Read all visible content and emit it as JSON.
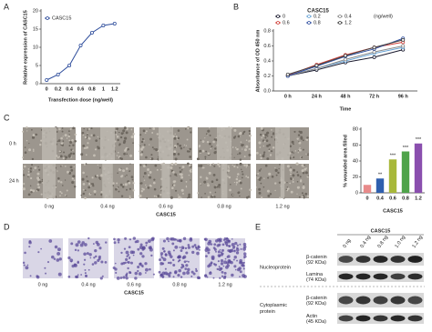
{
  "chart_data": [
    {
      "type": "line",
      "x_label": "Transfection dose (ng/well)",
      "y_label": "Relative expression of CASC15",
      "categories": [
        "0",
        "0.2",
        "0.4",
        "0.6",
        "0.8",
        "1",
        "1.2"
      ],
      "series": [
        {
          "name": "CASC15",
          "color": "#2e4d9c",
          "values": [
            1,
            2.5,
            5,
            10.5,
            14,
            16,
            16.5
          ]
        }
      ],
      "ylim": [
        0,
        20
      ],
      "yticks": [
        0,
        5,
        10,
        15,
        20
      ]
    },
    {
      "type": "line",
      "title": "CASC15",
      "x_label": "Time",
      "y_label": "Absorbance of OD 450 nm",
      "legend_title": "(ng/well)",
      "categories": [
        "0 h",
        "24 h",
        "48 h",
        "72 h",
        "96 h"
      ],
      "series": [
        {
          "name": "0",
          "color": "#1a1a2e",
          "values": [
            0.2,
            0.28,
            0.38,
            0.45,
            0.55
          ]
        },
        {
          "name": "0.2",
          "color": "#6aa6d8",
          "values": [
            0.2,
            0.3,
            0.4,
            0.5,
            0.58
          ]
        },
        {
          "name": "0.4",
          "color": "#8a8a8a",
          "values": [
            0.2,
            0.3,
            0.42,
            0.52,
            0.6
          ]
        },
        {
          "name": "0.6",
          "color": "#d0403a",
          "values": [
            0.21,
            0.35,
            0.48,
            0.58,
            0.65
          ]
        },
        {
          "name": "0.8",
          "color": "#2f4fa0",
          "values": [
            0.2,
            0.33,
            0.46,
            0.56,
            0.7
          ]
        },
        {
          "name": "1.2",
          "color": "#444444",
          "values": [
            0.22,
            0.34,
            0.47,
            0.58,
            0.68
          ]
        }
      ],
      "ylim": [
        0,
        0.8
      ],
      "yticks": [
        {
          "value": 0,
          "label": "0.0"
        },
        0.2,
        0.4,
        0.6,
        0.8
      ]
    },
    {
      "type": "bar",
      "x_label": "CASC15",
      "y_label": "% wounded area filled",
      "categories": [
        "0",
        "0.4",
        "0.6",
        "0.8",
        "1.2"
      ],
      "values": [
        10,
        18,
        42,
        52,
        62
      ],
      "colors": [
        "#e88a8a",
        "#2f5fae",
        "#a8b83a",
        "#4fa34a",
        "#8a4fae"
      ],
      "annotations": [
        null,
        "**",
        "***",
        "***",
        "***"
      ],
      "ylim": [
        0,
        80
      ],
      "yticks": [
        0,
        20,
        40,
        60,
        80
      ]
    }
  ],
  "panel_labels": [
    "A",
    "B",
    "C",
    "D",
    "E"
  ],
  "panel_c": {
    "row_labels": [
      "0 h",
      "24 h"
    ],
    "column_labels": [
      "0 ng",
      "0.4 ng",
      "0.6 ng",
      "0.8 ng",
      "1.2 ng"
    ],
    "group_label": "CASC15"
  },
  "panel_d": {
    "column_labels": [
      "0 ng",
      "0.4 ng",
      "0.6 ng",
      "0.8 ng",
      "1.2 ng"
    ],
    "group_label": "CASC15"
  },
  "panel_e": {
    "group_label": "CASC15",
    "lane_labels": [
      "0 ng",
      "0.4 ng",
      "0.8 ng",
      "1.0 ng",
      "1.2 ng"
    ],
    "sections": [
      {
        "label": [
          "Nucleoprotein"
        ],
        "bands": [
          {
            "name": "β-catenin",
            "size": "(92 KDa)"
          },
          {
            "name": "Lamina",
            "size": "(74 KDa)"
          }
        ]
      },
      {
        "label": [
          "Cytoplasmic",
          "protein"
        ],
        "bands": [
          {
            "name": "β-catenin",
            "size": "(92 KDa)"
          },
          {
            "name": "Actin",
            "size": "(45 KDa)"
          }
        ]
      }
    ]
  }
}
